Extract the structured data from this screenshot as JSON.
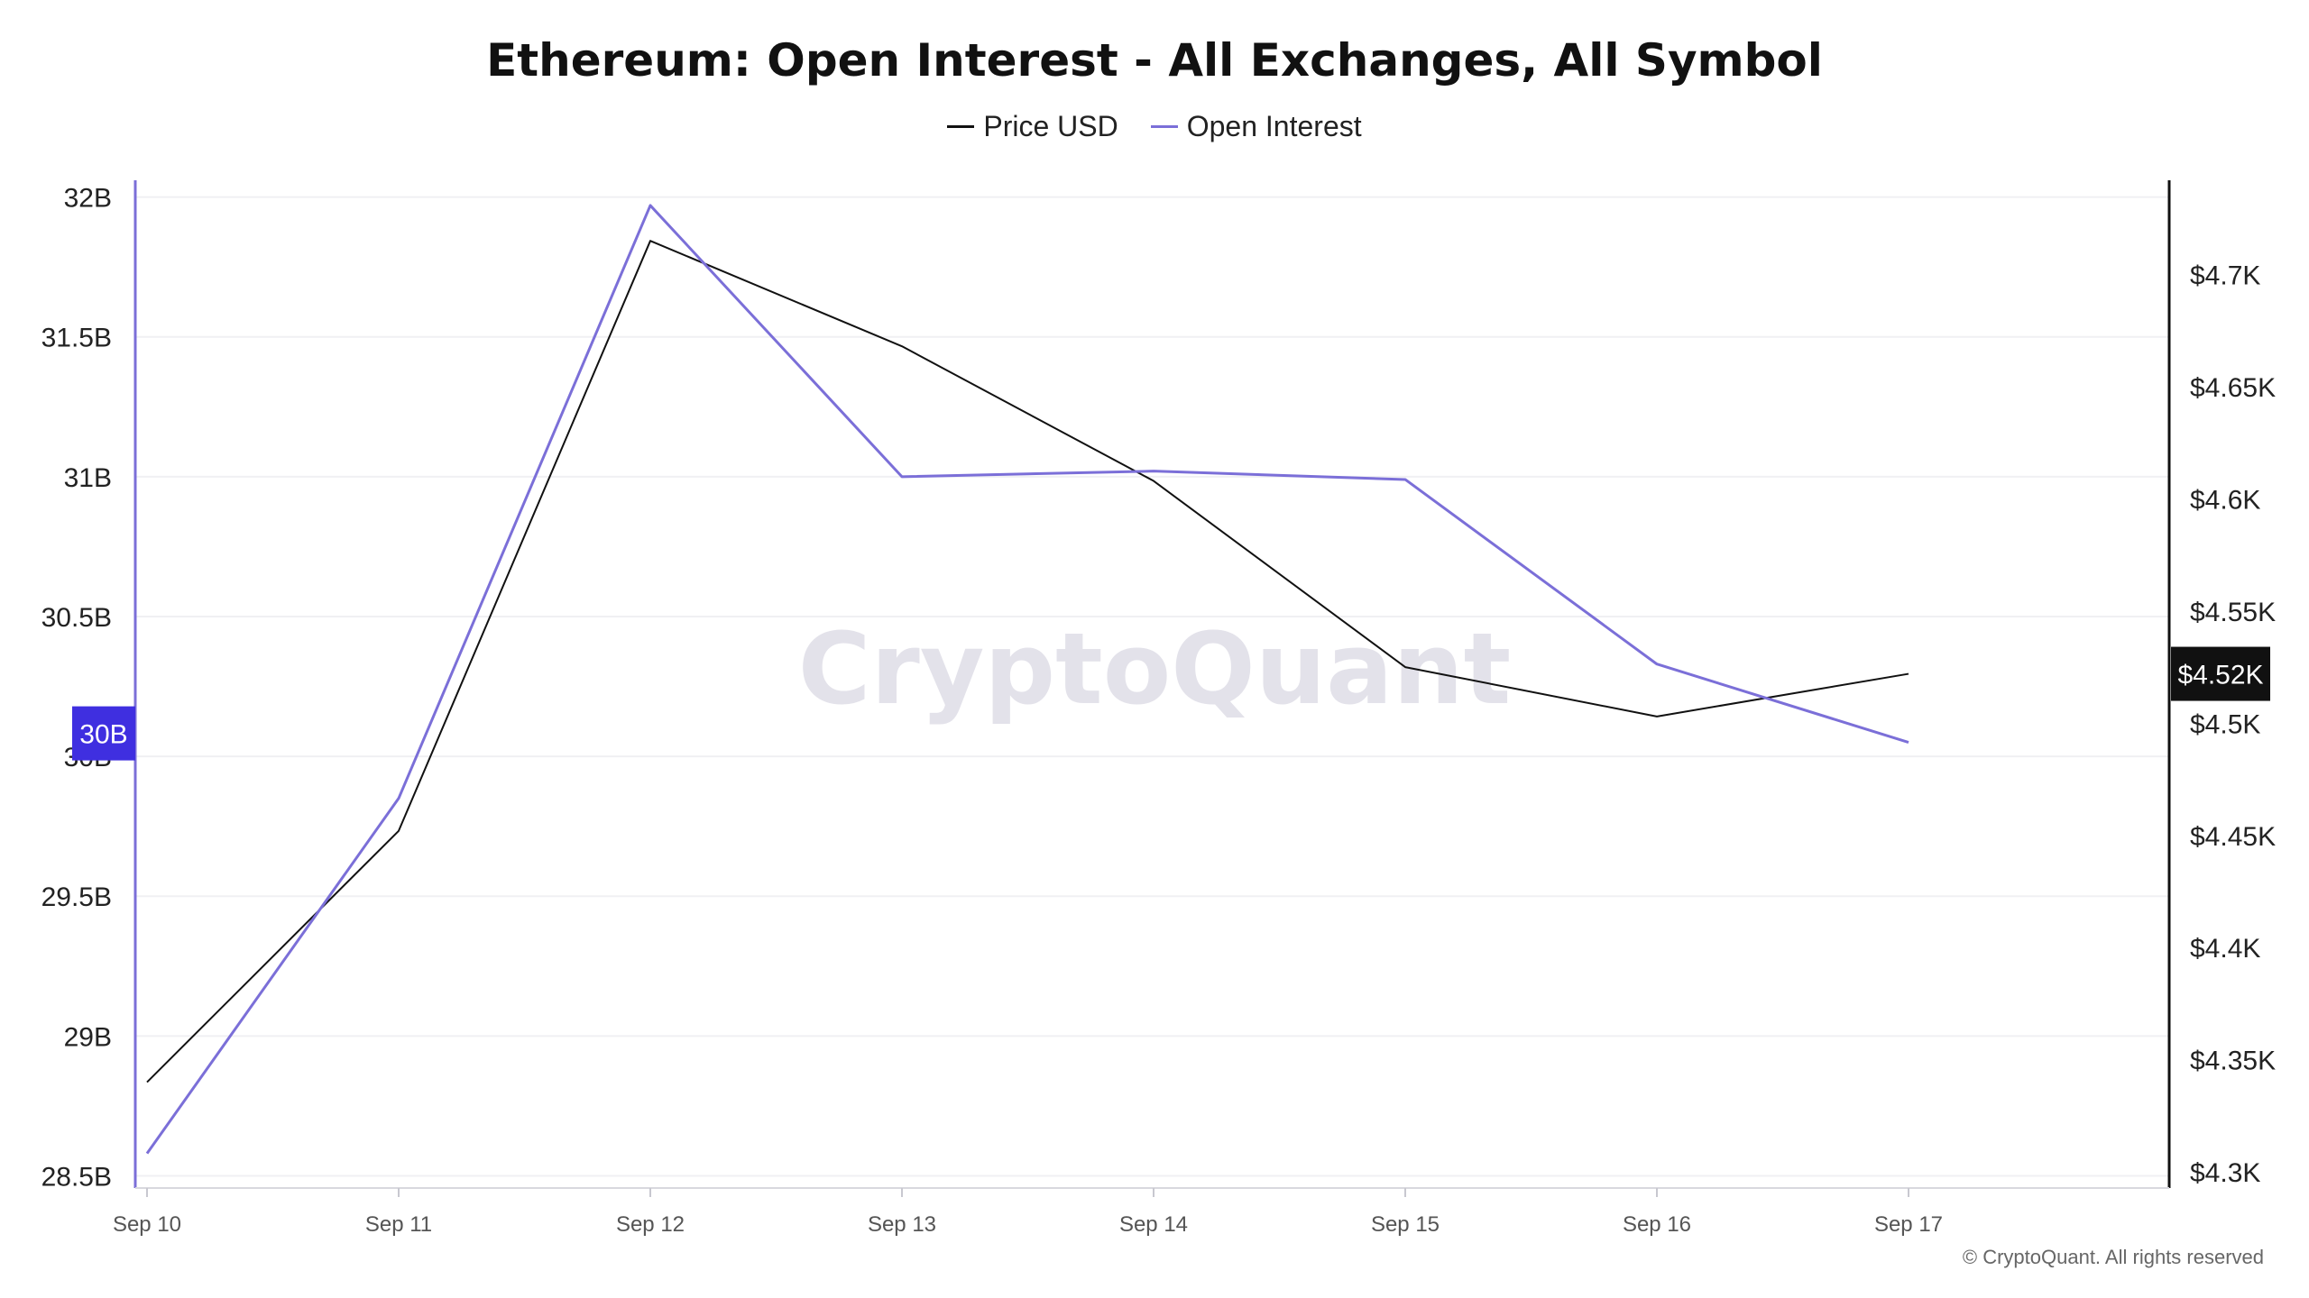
{
  "chart_data": {
    "type": "line",
    "title": "Ethereum: Open Interest - All Exchanges, All Symbol",
    "categories": [
      "Sep 10",
      "Sep 11",
      "Sep 12",
      "Sep 13",
      "Sep 14",
      "Sep 15",
      "Sep 16",
      "Sep 17"
    ],
    "series": [
      {
        "name": "Price USD",
        "axis": "right",
        "color": "#111111",
        "values": [
          4340,
          4452,
          4715,
          4668,
          4608,
          4525,
          4503,
          4522
        ]
      },
      {
        "name": "Open Interest",
        "axis": "left",
        "color": "#7b6fd8",
        "values": [
          28.58,
          29.85,
          31.97,
          31.0,
          31.02,
          30.99,
          30.33,
          30.05
        ]
      }
    ],
    "y_left": {
      "ticks": [
        "28.5B",
        "29B",
        "29.5B",
        "30B",
        "30.5B",
        "31B",
        "31.5B",
        "32B"
      ],
      "tick_values": [
        28.5,
        29,
        29.5,
        30,
        30.5,
        31,
        31.5,
        32
      ],
      "range": [
        28.45,
        32.06
      ]
    },
    "y_right": {
      "ticks": [
        "$4.3K",
        "$4.35K",
        "$4.4K",
        "$4.45K",
        "$4.5K",
        "$4.55K",
        "$4.6K",
        "$4.65K",
        "$4.7K"
      ],
      "tick_values": [
        4300,
        4350,
        4400,
        4450,
        4500,
        4550,
        4600,
        4650,
        4700
      ],
      "range": [
        4292,
        4742
      ]
    },
    "left_marker": {
      "label": "30B",
      "value": 30.05,
      "color": "#3f2fe0"
    },
    "right_marker": {
      "label": "$4.52K",
      "value": 4522,
      "color": "#111111"
    },
    "grid": true,
    "legend_position": "top-center"
  },
  "watermark": "CryptoQuant",
  "footer": "© CryptoQuant. All rights reserved"
}
